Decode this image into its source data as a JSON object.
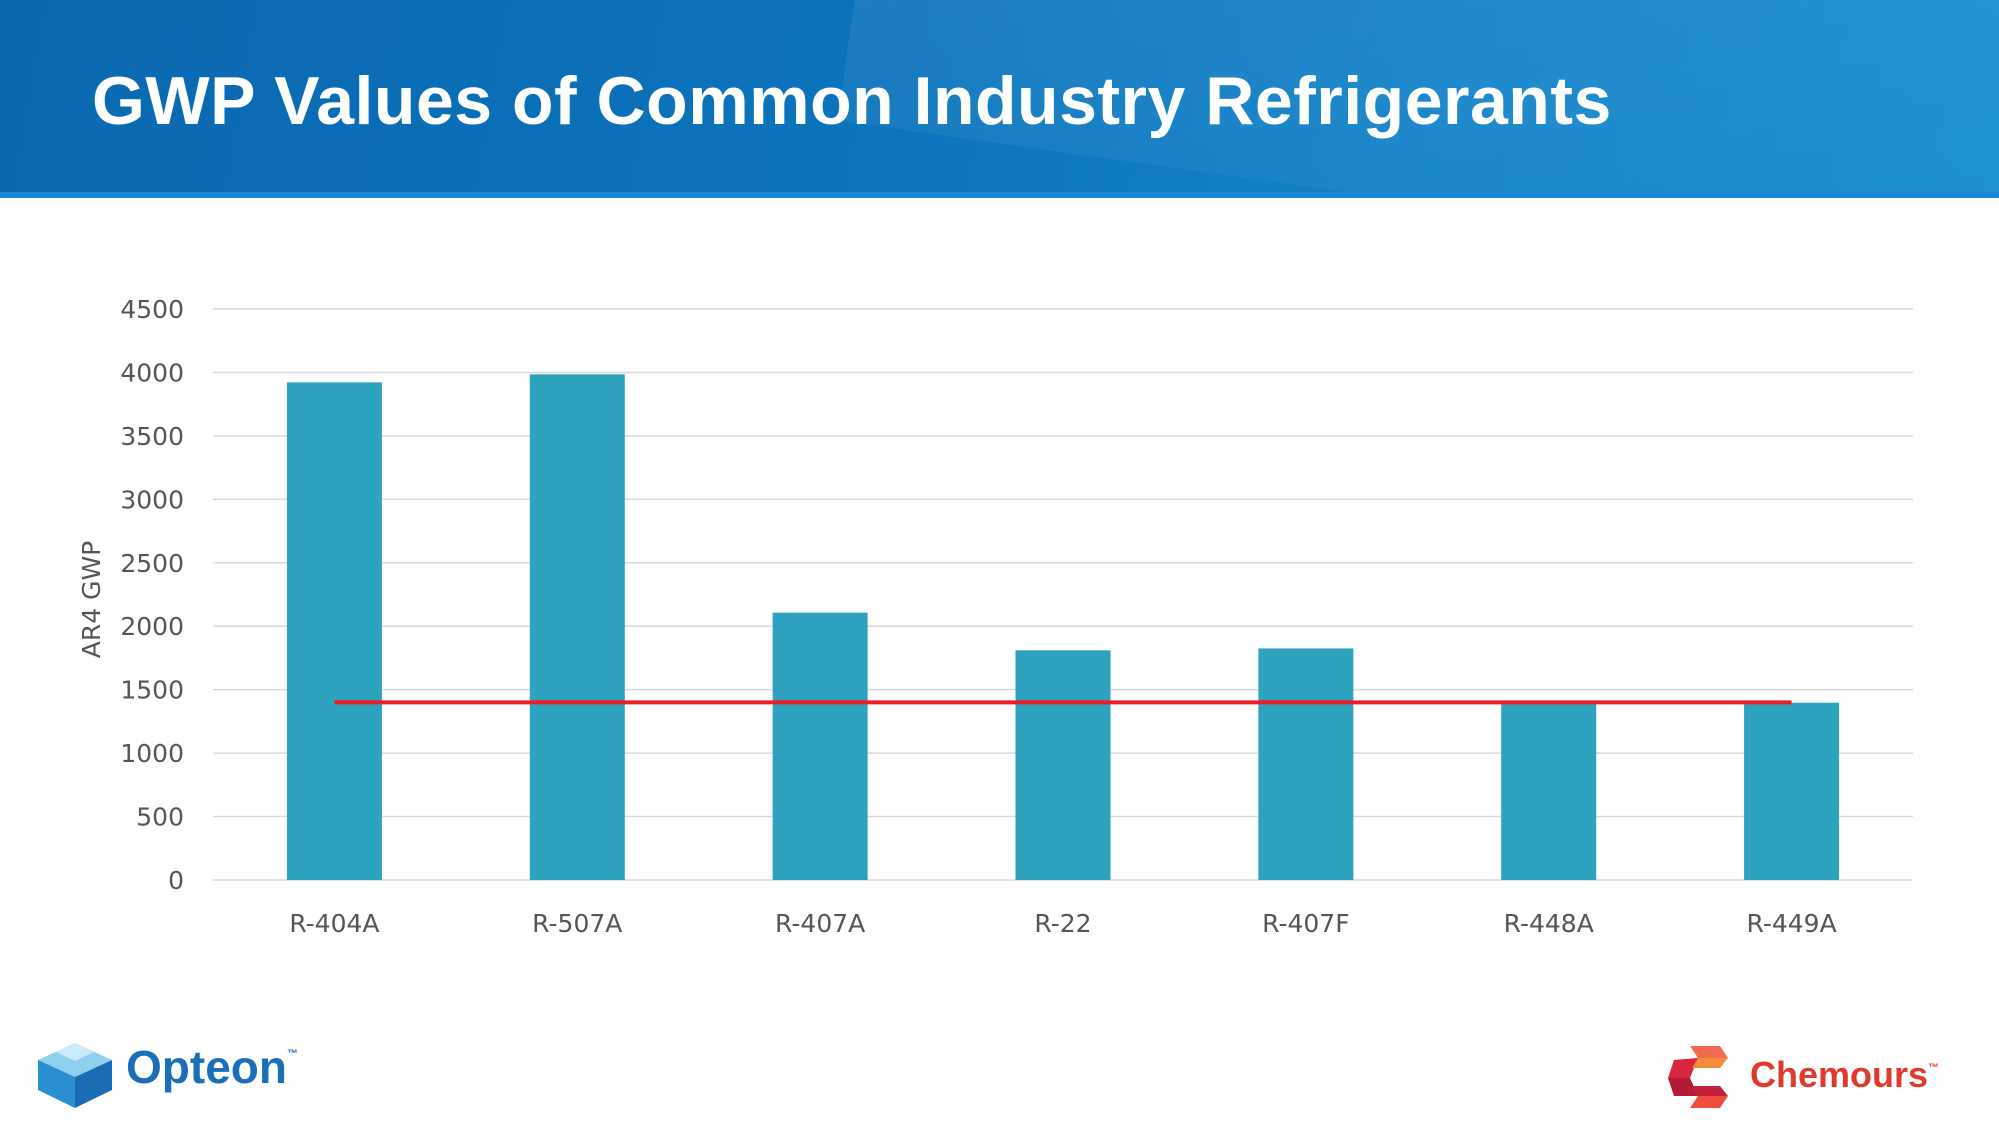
{
  "slide": {
    "title": "GWP Values of Common Industry Refrigerants"
  },
  "logos": {
    "left": {
      "text": "Opteon",
      "trademark": "™",
      "color": "#1b6fb8",
      "icon": "opteon-cube-icon"
    },
    "right": {
      "text": "Chemours",
      "trademark": "™",
      "color": "#e03a2f",
      "icon": "chemours-c-icon"
    }
  },
  "chart_data": {
    "type": "bar",
    "categories": [
      "R-404A",
      "R-507A",
      "R-407A",
      "R-22",
      "R-407F",
      "R-448A",
      "R-449A"
    ],
    "values": [
      3922,
      3985,
      2107,
      1810,
      1825,
      1387,
      1397
    ],
    "ylabel": "AR4 GWP",
    "xlabel": "",
    "ylim": [
      0,
      4500
    ],
    "yticks": [
      0,
      500,
      1000,
      1500,
      2000,
      2500,
      3000,
      3500,
      4000,
      4500
    ],
    "grid": true,
    "bar_color": "#2ea3c0",
    "reference_line": {
      "value": 1400,
      "from": "R-404A",
      "to": "R-449A",
      "color": "#ee1c24"
    }
  }
}
